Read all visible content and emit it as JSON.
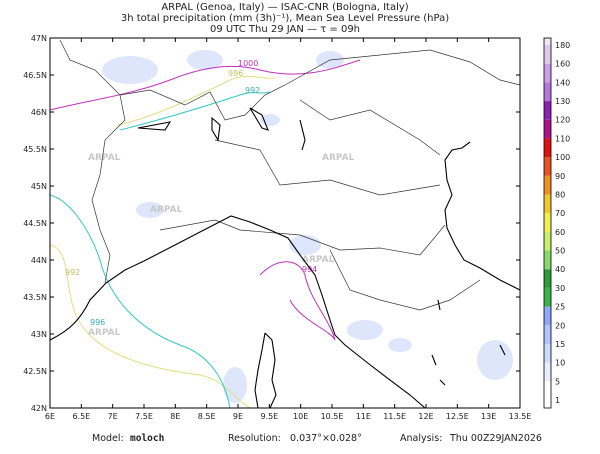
{
  "header": {
    "line1": "ARPAL (Genoa, Italy)  —  ISAC-CNR (Bologna, Italy)",
    "line2": "3h total precipitation (mm (3h)⁻¹), Mean Sea Level Pressure (hPa)",
    "line3": "09 UTC Thu 29 JAN  —  τ = 09h"
  },
  "map": {
    "lon_labels": [
      "6E",
      "6.5E",
      "7E",
      "7.5E",
      "8E",
      "8.5E",
      "9E",
      "9.5E",
      "10E",
      "10.5E",
      "11E",
      "11.5E",
      "12E",
      "12.5E",
      "13E",
      "13.5E"
    ],
    "lat_labels": [
      "47N",
      "46.5N",
      "46N",
      "45.5N",
      "45N",
      "44.5N",
      "44N",
      "43.5N",
      "43N",
      "42.5N",
      "42N"
    ],
    "watermark": "ARPAL",
    "isobar_labels": [
      "1000",
      "996",
      "992",
      "992",
      "996",
      "994"
    ]
  },
  "colorbar": {
    "labels": [
      1,
      5,
      10,
      15,
      20,
      25,
      30,
      40,
      50,
      60,
      70,
      80,
      90,
      100,
      110,
      120,
      130,
      140,
      160,
      180
    ],
    "colors": [
      "#ffffff",
      "#e8eeff",
      "#ccdcff",
      "#b0c4ff",
      "#90a8ff",
      "#3cb44b",
      "#2e9a3a",
      "#88d86a",
      "#c8f070",
      "#f0f050",
      "#f0c830",
      "#f09020",
      "#e85020",
      "#e01010",
      "#b0108c",
      "#8c20b0",
      "#b478dc",
      "#cca0e8",
      "#e0c8f0",
      "#f0e6f8"
    ]
  },
  "footer": {
    "model_label": "Model:",
    "model": "moloch",
    "resolution_label": "Resolution:",
    "resolution": "0.037°×0.028°",
    "analysis_label": "Analysis:",
    "analysis": "Thu 00Z29JAN2026"
  }
}
